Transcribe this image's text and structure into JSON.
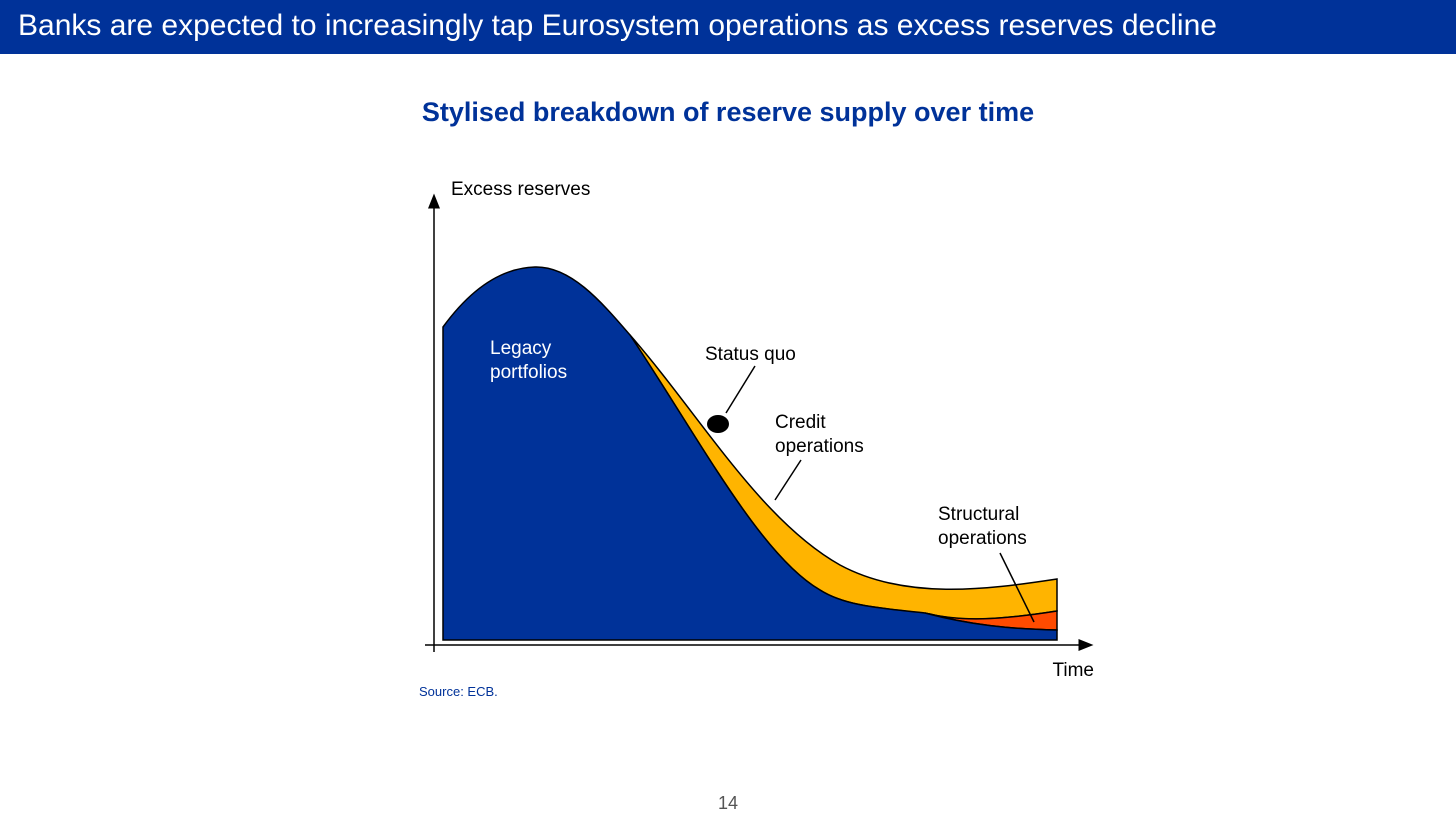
{
  "header": {
    "title": "Banks are expected to increasingly tap Eurosystem operations as excess reserves decline"
  },
  "chart_data": {
    "type": "area",
    "title": "Stylised breakdown of reserve supply over time",
    "ylabel": "Excess reserves",
    "xlabel": "Time",
    "grid": false,
    "legend": "none",
    "series": [
      {
        "name": "Legacy portfolios",
        "color": "#003299"
      },
      {
        "name": "Credit operations",
        "color": "#FFB400"
      },
      {
        "name": "Structural operations",
        "color": "#FF4B00"
      }
    ],
    "annotations": [
      {
        "text": "Status quo",
        "marker": "dot"
      },
      {
        "text": "Legacy portfolios"
      },
      {
        "text": "Credit operations"
      },
      {
        "text": "Structural operations"
      }
    ]
  },
  "labels": {
    "legacy": [
      "Legacy",
      "portfolios"
    ],
    "status_quo": "Status quo",
    "credit": [
      "Credit",
      "operations"
    ],
    "structural": [
      "Structural",
      "operations"
    ]
  },
  "source": "Source: ECB.",
  "page_number": "14"
}
